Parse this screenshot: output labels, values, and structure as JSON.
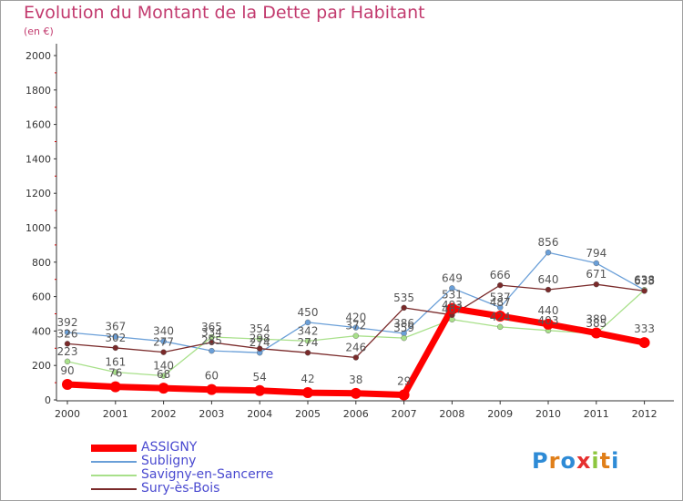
{
  "title": "Evolution du Montant de la Dette par Habitant",
  "unit": "(en €)",
  "logo": {
    "letters": [
      "P",
      "r",
      "o",
      "x",
      "i",
      "t",
      "i"
    ],
    "colors": [
      "#2e8bd6",
      "#e07f1a",
      "#2e8bd6",
      "#e6302f",
      "#8dc63f",
      "#e07f1a",
      "#2e8bd6"
    ]
  },
  "chart_data": {
    "type": "line",
    "x": [
      2000,
      2001,
      2002,
      2003,
      2004,
      2005,
      2006,
      2007,
      2008,
      2009,
      2010,
      2011,
      2012
    ],
    "ylim": [
      0,
      2000
    ],
    "yticks": [
      0,
      200,
      400,
      600,
      800,
      1000,
      1200,
      1400,
      1600,
      1800,
      2000
    ],
    "grid": false,
    "legend_position": "bottom-left",
    "series": [
      {
        "name": "ASSIGNY",
        "color": "#ff0000",
        "values": [
          90,
          76,
          68,
          60,
          54,
          42,
          38,
          29,
          531,
          487,
          440,
          389,
          333
        ]
      },
      {
        "name": "Subligny",
        "color": "#6a9fd8",
        "values": [
          392,
          367,
          340,
          285,
          274,
          450,
          420,
          386,
          649,
          537,
          856,
          794,
          638
        ]
      },
      {
        "name": "Savigny-en-Sancerre",
        "color": "#a8e08a",
        "values": [
          223,
          161,
          140,
          365,
          354,
          342,
          372,
          359,
          467,
          424,
          403,
          385,
          638
        ]
      },
      {
        "name": "Sury-ès-Bois",
        "color": "#7a2a2a",
        "values": [
          326,
          302,
          277,
          334,
          298,
          274,
          246,
          535,
          493,
          666,
          640,
          671,
          633
        ]
      }
    ]
  }
}
